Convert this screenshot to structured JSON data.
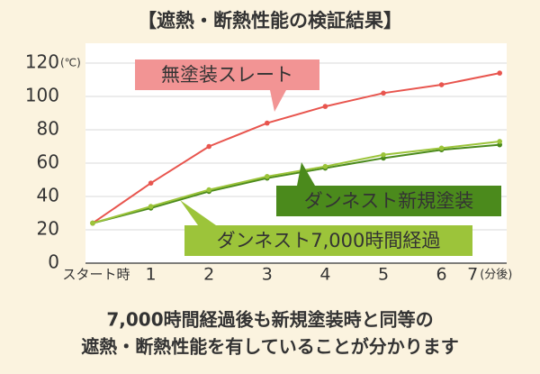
{
  "chart_data": {
    "type": "line",
    "title": "【遮熱・断熱性能の検証結果】",
    "categories": [
      "スタート時",
      "1",
      "2",
      "3",
      "4",
      "5",
      "6",
      "7"
    ],
    "x_unit": "(分後)",
    "y_unit": "(℃)",
    "ylim": [
      0,
      120
    ],
    "yticks": [
      0,
      20,
      40,
      60,
      80,
      100,
      120
    ],
    "highlight_ytick": 100,
    "highlight_color": "#e8554e",
    "grid": true,
    "series": [
      {
        "name": "無塗装スレート",
        "color": "#e8554e",
        "label_color": "#f29494",
        "values": [
          24,
          48,
          70,
          84,
          94,
          102,
          107,
          114
        ]
      },
      {
        "name": "ダンネスト新規塗装",
        "color": "#4b8a1c",
        "label_color": "#4b8a1c",
        "values": [
          24,
          33,
          43,
          51,
          57,
          63,
          68,
          71
        ]
      },
      {
        "name": "ダンネスト7,000時間経過",
        "color": "#9cc43a",
        "label_color": "#9cc43a",
        "values": [
          24,
          34,
          44,
          52,
          58,
          65,
          69,
          73
        ]
      }
    ],
    "caption": [
      "7,000時間経過後も新規塗装時と同等の",
      "遮熱・断熱性能を有していることが分かります"
    ]
  }
}
